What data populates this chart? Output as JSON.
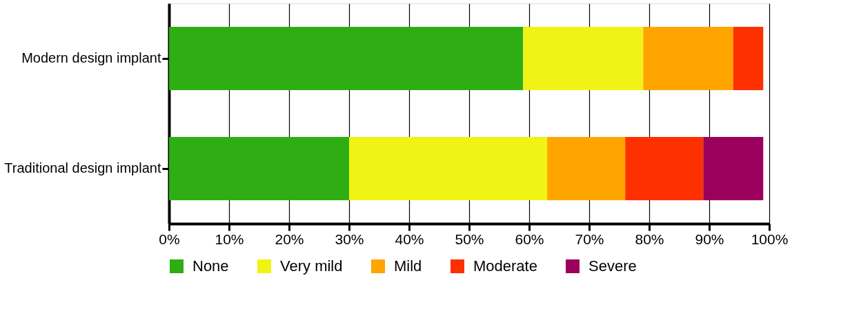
{
  "chart_data": {
    "type": "bar",
    "orientation": "horizontal",
    "stacked": true,
    "categories": [
      "Modern design implant",
      "Traditional design implant"
    ],
    "series": [
      {
        "name": "None",
        "color": "#2eae12",
        "values": [
          59,
          30
        ]
      },
      {
        "name": "Very mild",
        "color": "#f0f314",
        "values": [
          20,
          33
        ]
      },
      {
        "name": "Mild",
        "color": "#ffa500",
        "values": [
          15,
          13
        ]
      },
      {
        "name": "Moderate",
        "color": "#ff3000",
        "values": [
          5,
          13
        ]
      },
      {
        "name": "Severe",
        "color": "#9b005c",
        "values": [
          null,
          10
        ]
      }
    ],
    "xlim": [
      0,
      100
    ],
    "xticks": [
      {
        "value": 0,
        "label": "0%"
      },
      {
        "value": 10,
        "label": "10%"
      },
      {
        "value": 20,
        "label": "20%"
      },
      {
        "value": 30,
        "label": "30%"
      },
      {
        "value": 40,
        "label": "40%"
      },
      {
        "value": 50,
        "label": "50%"
      },
      {
        "value": 60,
        "label": "60%"
      },
      {
        "value": 70,
        "label": "70%"
      },
      {
        "value": 80,
        "label": "80%"
      },
      {
        "value": 90,
        "label": "90%"
      },
      {
        "value": 100,
        "label": "100%"
      }
    ],
    "grid": "x",
    "legend": "bottom"
  }
}
